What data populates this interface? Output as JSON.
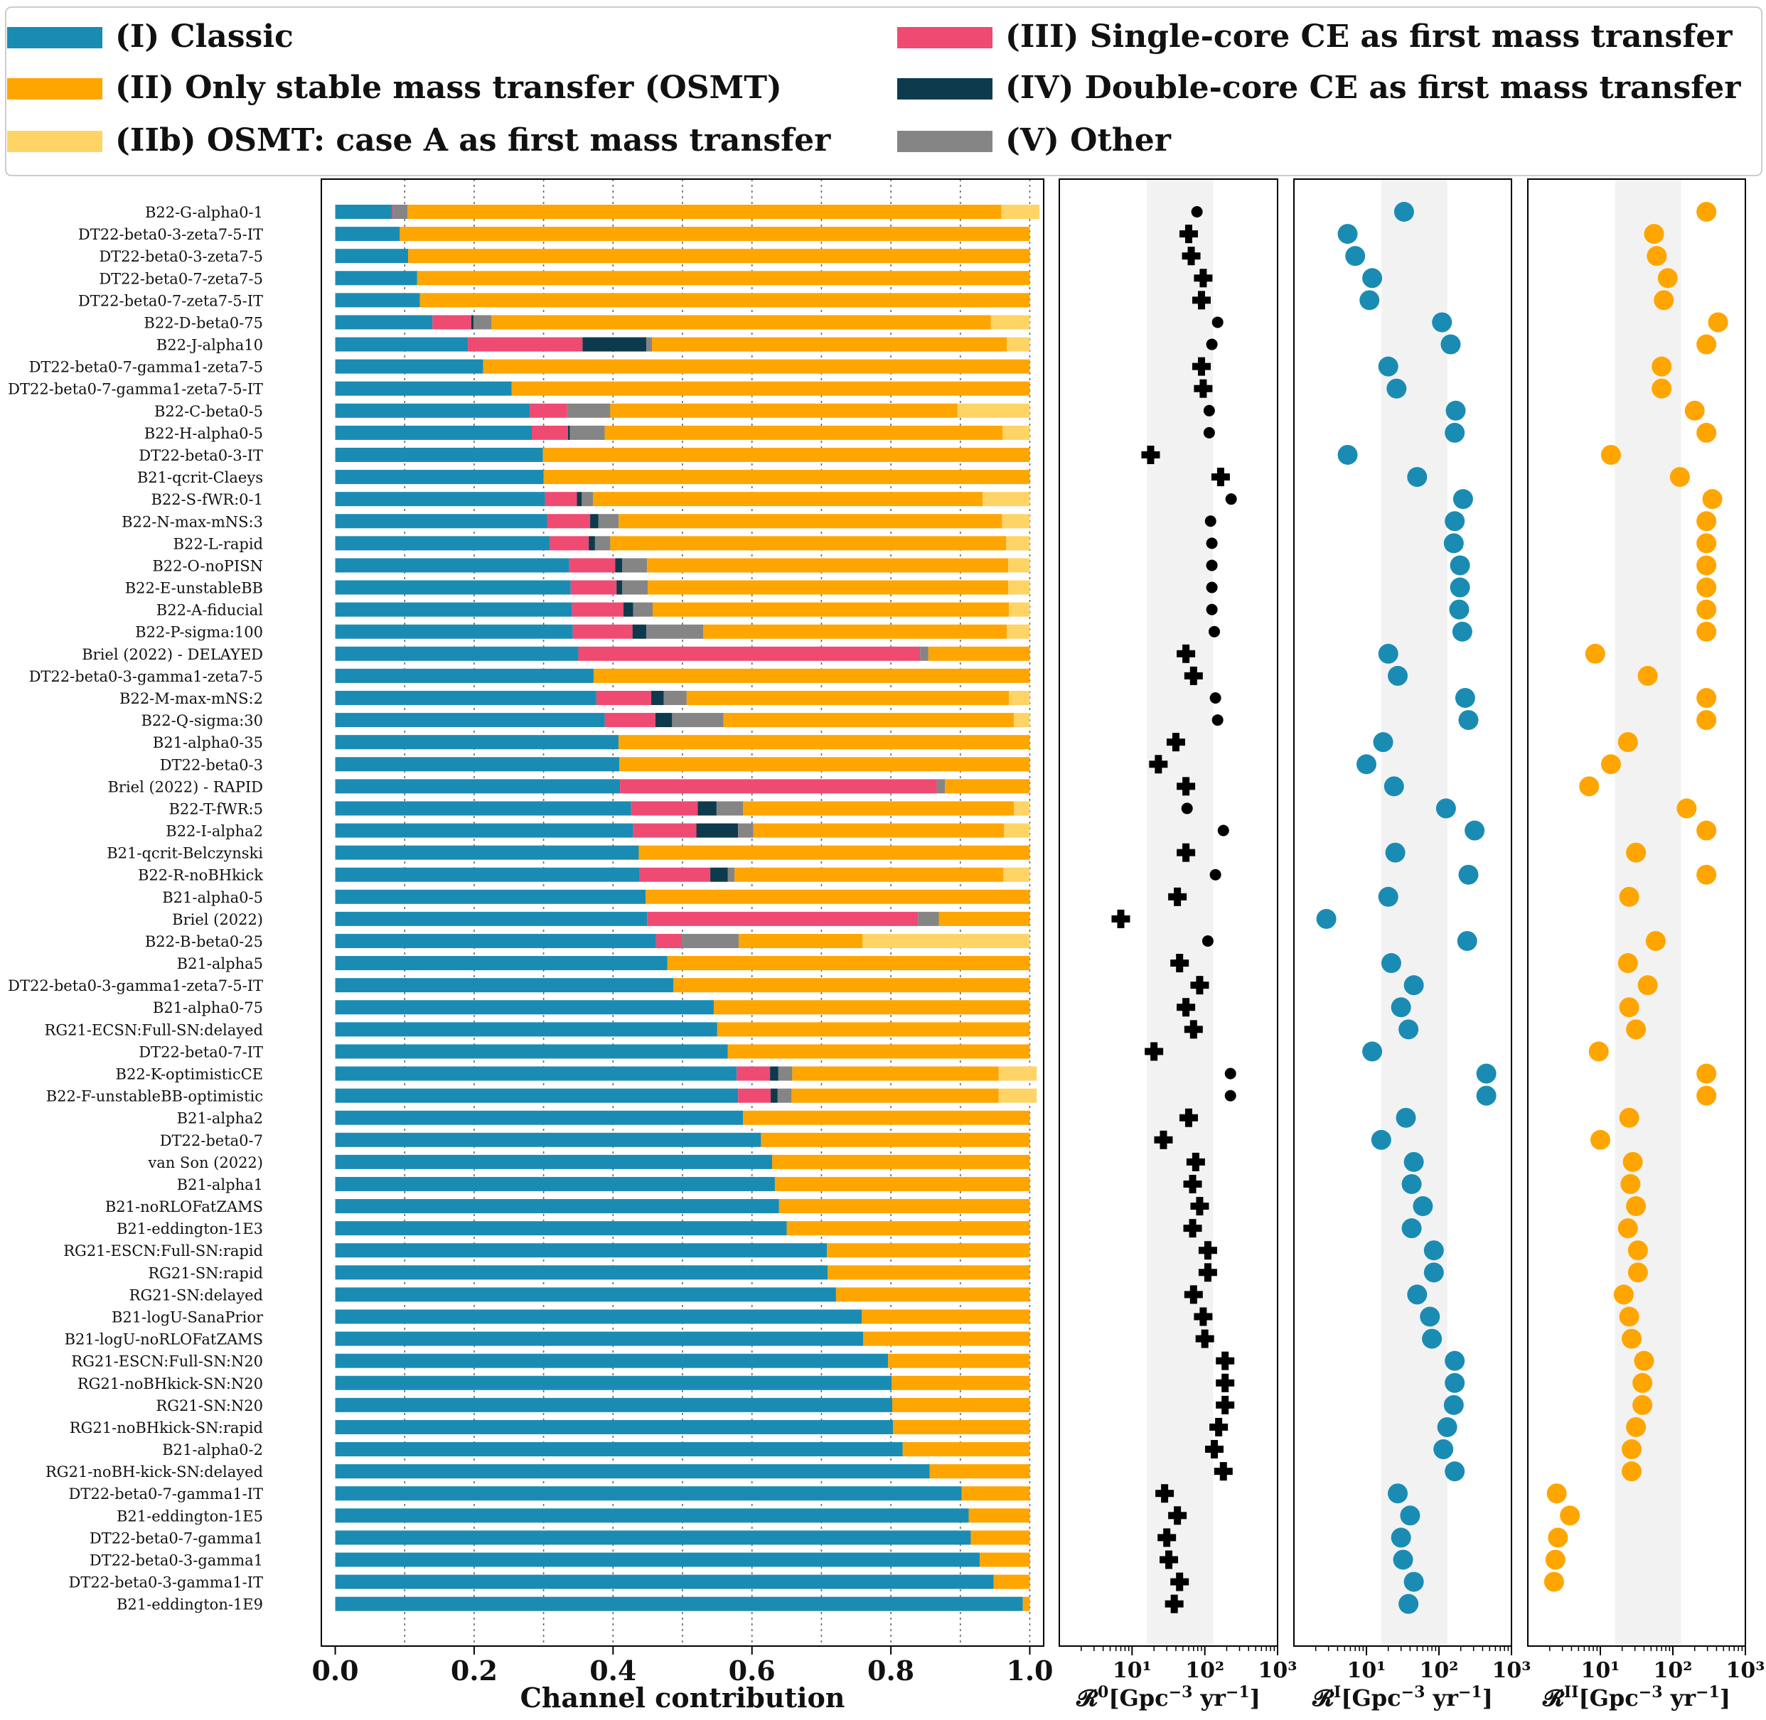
{
  "legend": [
    {
      "key": "I",
      "label": "(I) Classic",
      "color": "#1a8cb3"
    },
    {
      "key": "II",
      "label": "(II) Only stable mass transfer (OSMT)",
      "color": "#ffa500"
    },
    {
      "key": "IIb",
      "label": "(IIb) OSMT: case A as first mass transfer",
      "color": "#ffd466"
    },
    {
      "key": "III",
      "label": "(III) Single-core CE as first mass transfer",
      "color": "#ef4a72"
    },
    {
      "key": "IV",
      "label": "(IV) Double-core CE as first mass transfer",
      "color": "#0d3b4d"
    },
    {
      "key": "V",
      "label": "(V) Other",
      "color": "#858585"
    }
  ],
  "chart_data": [
    {
      "type": "bar",
      "orientation": "horizontal",
      "stacked": true,
      "xlabel": "Channel contribution",
      "xlim": [
        -0.02,
        1.02
      ],
      "xticks": [
        0.0,
        0.2,
        0.4,
        0.6,
        0.8,
        1.0
      ],
      "xtick_labels": [
        "0.0",
        "0.2",
        "0.4",
        "0.6",
        "0.8",
        "1.0"
      ],
      "vertical_dotted_grid": [
        0.1,
        0.2,
        0.3,
        0.4,
        0.5,
        0.6,
        0.7,
        0.8,
        0.9,
        1.0
      ],
      "series_order": [
        "I",
        "III",
        "IV",
        "V",
        "II",
        "IIb"
      ],
      "categories": [
        "B22-G-alpha0-1",
        "DT22-beta0-3-zeta7-5-IT",
        "DT22-beta0-3-zeta7-5",
        "DT22-beta0-7-zeta7-5",
        "DT22-beta0-7-zeta7-5-IT",
        "B22-D-beta0-75",
        "B22-J-alpha10",
        "DT22-beta0-7-gamma1-zeta7-5",
        "DT22-beta0-7-gamma1-zeta7-5-IT",
        "B22-C-beta0-5",
        "B22-H-alpha0-5",
        "DT22-beta0-3-IT",
        "B21-qcrit-Claeys",
        "B22-S-fWR:0-1",
        "B22-N-max-mNS:3",
        "B22-L-rapid",
        "B22-O-noPISN",
        "B22-E-unstableBB",
        "B22-A-fiducial",
        "B22-P-sigma:100",
        "Briel (2022) - DELAYED",
        "DT22-beta0-3-gamma1-zeta7-5",
        "B22-M-max-mNS:2",
        "B22-Q-sigma:30",
        "B21-alpha0-35",
        "DT22-beta0-3",
        "Briel (2022) - RAPID",
        "B22-T-fWR:5",
        "B22-I-alpha2",
        "B21-qcrit-Belczynski",
        "B22-R-noBHkick",
        "B21-alpha0-5",
        "Briel (2022)",
        "B22-B-beta0-25",
        "B21-alpha5",
        "DT22-beta0-3-gamma1-zeta7-5-IT",
        "B21-alpha0-75",
        "RG21-ECSN:Full-SN:delayed",
        "DT22-beta0-7-IT",
        "B22-K-optimisticCE",
        "B22-F-unstableBB-optimistic",
        "B21-alpha2",
        "DT22-beta0-7",
        "van Son (2022)",
        "B21-alpha1",
        "B21-noRLOFatZAMS",
        "B21-eddington-1E3",
        "RG21-ESCN:Full-SN:rapid",
        "RG21-SN:rapid",
        "RG21-SN:delayed",
        "B21-logU-SanaPrior",
        "B21-logU-noRLOFatZAMS",
        "RG21-ESCN:Full-SN:N20",
        "RG21-noBHkick-SN:N20",
        "RG21-SN:N20",
        "RG21-noBHkick-SN:rapid",
        "B21-alpha0-2",
        "RG21-noBH-kick-SN:delayed",
        "DT22-beta0-7-gamma1-IT",
        "B21-eddington-1E5",
        "DT22-beta0-7-gamma1",
        "DT22-beta0-3-gamma1",
        "DT22-beta0-3-gamma1-IT",
        "B21-eddington-1E9"
      ],
      "fractions": [
        [
          0.082,
          0.002,
          0.0,
          0.02,
          0.855,
          0.055
        ],
        [
          0.093,
          0.0,
          0.0,
          0.0,
          0.907,
          0.0
        ],
        [
          0.105,
          0.0,
          0.0,
          0.0,
          0.895,
          0.0
        ],
        [
          0.118,
          0.0,
          0.0,
          0.0,
          0.882,
          0.0
        ],
        [
          0.122,
          0.0,
          0.0,
          0.0,
          0.878,
          0.0
        ],
        [
          0.14,
          0.056,
          0.003,
          0.026,
          0.719,
          0.056
        ],
        [
          0.191,
          0.165,
          0.092,
          0.008,
          0.511,
          0.033
        ],
        [
          0.213,
          0.0,
          0.0,
          0.0,
          0.787,
          0.0
        ],
        [
          0.254,
          0.0,
          0.0,
          0.0,
          0.746,
          0.0
        ],
        [
          0.28,
          0.054,
          0.0,
          0.062,
          0.5,
          0.104
        ],
        [
          0.283,
          0.052,
          0.003,
          0.05,
          0.573,
          0.039
        ],
        [
          0.299,
          0.0,
          0.0,
          0.0,
          0.701,
          0.0
        ],
        [
          0.3,
          0.0,
          0.0,
          0.0,
          0.7,
          0.0
        ],
        [
          0.302,
          0.046,
          0.007,
          0.016,
          0.561,
          0.068
        ],
        [
          0.305,
          0.062,
          0.012,
          0.029,
          0.552,
          0.04
        ],
        [
          0.309,
          0.056,
          0.009,
          0.022,
          0.57,
          0.034
        ],
        [
          0.337,
          0.066,
          0.01,
          0.036,
          0.52,
          0.031
        ],
        [
          0.339,
          0.066,
          0.008,
          0.037,
          0.519,
          0.031
        ],
        [
          0.341,
          0.074,
          0.014,
          0.028,
          0.513,
          0.03
        ],
        [
          0.342,
          0.086,
          0.02,
          0.082,
          0.437,
          0.033
        ],
        [
          0.35,
          0.492,
          0.0,
          0.012,
          0.146,
          0.0
        ],
        [
          0.372,
          0.0,
          0.0,
          0.0,
          0.628,
          0.0
        ],
        [
          0.376,
          0.079,
          0.018,
          0.033,
          0.464,
          0.03
        ],
        [
          0.388,
          0.073,
          0.024,
          0.074,
          0.418,
          0.023
        ],
        [
          0.408,
          0.0,
          0.0,
          0.0,
          0.592,
          0.0
        ],
        [
          0.409,
          0.0,
          0.0,
          0.0,
          0.591,
          0.0
        ],
        [
          0.41,
          0.456,
          0.0,
          0.012,
          0.122,
          0.0
        ],
        [
          0.426,
          0.096,
          0.027,
          0.038,
          0.39,
          0.023
        ],
        [
          0.429,
          0.091,
          0.06,
          0.022,
          0.361,
          0.037
        ],
        [
          0.437,
          0.0,
          0.0,
          0.0,
          0.563,
          0.0
        ],
        [
          0.438,
          0.102,
          0.025,
          0.01,
          0.387,
          0.038
        ],
        [
          0.447,
          0.0,
          0.0,
          0.0,
          0.553,
          0.0
        ],
        [
          0.449,
          0.39,
          0.0,
          0.03,
          0.131,
          0.0
        ],
        [
          0.462,
          0.037,
          0.0,
          0.082,
          0.178,
          0.241
        ],
        [
          0.478,
          0.0,
          0.0,
          0.0,
          0.522,
          0.0
        ],
        [
          0.487,
          0.0,
          0.0,
          0.0,
          0.513,
          0.0
        ],
        [
          0.545,
          0.0,
          0.0,
          0.0,
          0.455,
          0.0
        ],
        [
          0.55,
          0.0,
          0.0,
          0.0,
          0.45,
          0.0
        ],
        [
          0.565,
          0.0,
          0.0,
          0.0,
          0.435,
          0.0
        ],
        [
          0.578,
          0.048,
          0.012,
          0.02,
          0.297,
          0.055
        ],
        [
          0.58,
          0.047,
          0.01,
          0.02,
          0.298,
          0.055
        ],
        [
          0.587,
          0.0,
          0.0,
          0.0,
          0.413,
          0.0
        ],
        [
          0.613,
          0.0,
          0.0,
          0.0,
          0.387,
          0.0
        ],
        [
          0.629,
          0.0,
          0.0,
          0.0,
          0.371,
          0.0
        ],
        [
          0.633,
          0.0,
          0.0,
          0.0,
          0.367,
          0.0
        ],
        [
          0.639,
          0.0,
          0.0,
          0.0,
          0.361,
          0.0
        ],
        [
          0.65,
          0.0,
          0.0,
          0.0,
          0.35,
          0.0
        ],
        [
          0.708,
          0.0,
          0.0,
          0.0,
          0.292,
          0.0
        ],
        [
          0.709,
          0.0,
          0.0,
          0.0,
          0.291,
          0.0
        ],
        [
          0.721,
          0.0,
          0.0,
          0.0,
          0.279,
          0.0
        ],
        [
          0.758,
          0.0,
          0.0,
          0.0,
          0.242,
          0.0
        ],
        [
          0.76,
          0.0,
          0.0,
          0.0,
          0.24,
          0.0
        ],
        [
          0.796,
          0.0,
          0.0,
          0.0,
          0.204,
          0.0
        ],
        [
          0.801,
          0.0,
          0.0,
          0.0,
          0.199,
          0.0
        ],
        [
          0.802,
          0.0,
          0.0,
          0.0,
          0.198,
          0.0
        ],
        [
          0.803,
          0.0,
          0.0,
          0.0,
          0.197,
          0.0
        ],
        [
          0.817,
          0.0,
          0.0,
          0.0,
          0.183,
          0.0
        ],
        [
          0.856,
          0.0,
          0.0,
          0.0,
          0.144,
          0.0
        ],
        [
          0.902,
          0.0,
          0.0,
          0.0,
          0.098,
          0.0
        ],
        [
          0.912,
          0.0,
          0.0,
          0.0,
          0.088,
          0.0
        ],
        [
          0.915,
          0.0,
          0.0,
          0.0,
          0.085,
          0.0
        ],
        [
          0.928,
          0.0,
          0.0,
          0.0,
          0.072,
          0.0
        ],
        [
          0.948,
          0.0,
          0.0,
          0.0,
          0.052,
          0.0
        ],
        [
          0.99,
          0.0,
          0.0,
          0.0,
          0.01,
          0.0
        ]
      ]
    },
    {
      "type": "scatter",
      "xlabel": "R0 [Gpc-3 yr-1]",
      "xlabel_parts": {
        "symbol": "𝓡",
        "sup": "0",
        "unit": "[Gpc",
        "exp": "−3",
        "tail": " yr",
        "exp2": "−1",
        "close": "]"
      },
      "xscale": "log",
      "xlim": [
        1,
        1000
      ],
      "xtick_labels": [
        "10¹",
        "10²",
        "10³"
      ],
      "shaded_band": [
        16,
        130
      ],
      "color": "#000000",
      "markers": [
        "dot",
        "plus",
        "plus",
        "plus",
        "plus",
        "dot",
        "dot",
        "plus",
        "plus",
        "dot",
        "dot",
        "plus",
        "plus",
        "dot",
        "dot",
        "dot",
        "dot",
        "dot",
        "dot",
        "dot",
        "plus",
        "plus",
        "dot",
        "dot",
        "plus",
        "plus",
        "plus",
        "dot",
        "dot",
        "plus",
        "dot",
        "plus",
        "plus",
        "dot",
        "plus",
        "plus",
        "plus",
        "plus",
        "plus",
        "dot",
        "dot",
        "plus",
        "plus",
        "plus",
        "plus",
        "plus",
        "plus",
        "plus",
        "plus",
        "plus",
        "plus",
        "plus",
        "plus",
        "plus",
        "plus",
        "plus",
        "plus",
        "plus",
        "plus",
        "plus",
        "plus",
        "plus",
        "plus",
        "plus"
      ],
      "values": [
        78,
        60,
        65,
        95,
        90,
        150,
        125,
        90,
        95,
        115,
        115,
        18,
        165,
        230,
        120,
        125,
        125,
        125,
        125,
        135,
        55,
        70,
        140,
        150,
        40,
        23,
        55,
        57,
        180,
        55,
        140,
        42,
        7,
        110,
        45,
        85,
        55,
        70,
        20,
        225,
        225,
        60,
        27,
        75,
        68,
        85,
        68,
        110,
        110,
        70,
        95,
        100,
        190,
        190,
        190,
        155,
        135,
        180,
        28,
        42,
        30,
        32,
        45,
        38
      ]
    },
    {
      "type": "scatter",
      "xlabel": "RI [Gpc-3 yr-1]",
      "xlabel_parts": {
        "symbol": "𝓡",
        "sup": "I",
        "unit": "[Gpc",
        "exp": "−3",
        "tail": " yr",
        "exp2": "−1",
        "close": "]"
      },
      "xscale": "log",
      "xlim": [
        1,
        1000
      ],
      "xtick_labels": [
        "10¹",
        "10²",
        "10³"
      ],
      "shaded_band": [
        16,
        130
      ],
      "color": "#1a8cb3",
      "values": [
        33,
        5.5,
        7,
        12,
        11,
        110,
        145,
        20,
        26,
        170,
        165,
        5.5,
        50,
        215,
        165,
        160,
        195,
        195,
        190,
        210,
        20,
        27,
        230,
        255,
        17,
        10,
        24,
        125,
        310,
        25,
        255,
        20,
        2.8,
        245,
        22,
        45,
        30,
        38,
        12,
        450,
        450,
        35,
        16,
        45,
        42,
        60,
        42,
        85,
        85,
        50,
        75,
        80,
        165,
        165,
        160,
        130,
        115,
        165,
        27,
        40,
        30,
        32,
        45,
        38
      ]
    },
    {
      "type": "scatter",
      "xlabel": "RII [Gpc-3 yr-1]",
      "xlabel_parts": {
        "symbol": "𝓡",
        "sup": "II",
        "unit": "[Gpc",
        "exp": "−3",
        "tail": " yr",
        "exp2": "−1",
        "close": "]"
      },
      "xscale": "log",
      "xlim": [
        1,
        1000
      ],
      "xtick_labels": [
        "10¹",
        "10²",
        "10³"
      ],
      "shaded_band": [
        16,
        130
      ],
      "color": "#ffa500",
      "values": [
        290,
        55,
        60,
        85,
        75,
        420,
        290,
        70,
        70,
        200,
        290,
        14,
        125,
        350,
        290,
        290,
        290,
        290,
        290,
        290,
        8.5,
        45,
        290,
        290,
        24,
        14,
        7,
        155,
        290,
        31,
        290,
        25,
        0,
        58,
        24,
        45,
        25,
        31,
        9.5,
        290,
        290,
        25,
        10,
        28,
        26,
        31,
        24,
        33,
        33,
        21,
        25,
        27,
        40,
        38,
        38,
        31,
        27,
        27,
        2.5,
        3.8,
        2.6,
        2.4,
        2.3,
        0
      ]
    }
  ]
}
